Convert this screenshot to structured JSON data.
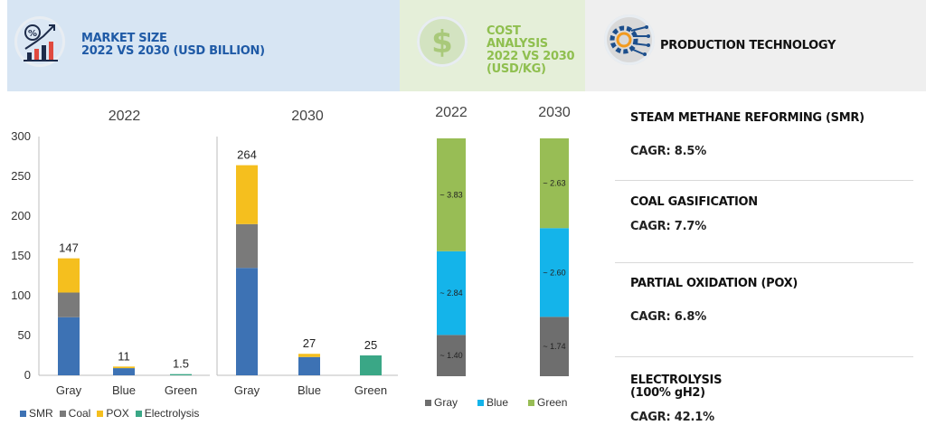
{
  "header": {
    "market_title": "MARKET SIZE\n2022 VS 2030 (USD BILLION)",
    "cost_title": "COST ANALYSIS\n2022 VS 2030\n(USD/KG)",
    "prod_title": "PRODUCTION TECHNOLOGY",
    "market_icon": "chart-percent-icon",
    "cost_icon": "dollar-icon",
    "prod_icon": "gear-circuit-icon"
  },
  "colors": {
    "smr": "#3d72b4",
    "coal": "#7a7a7a",
    "pox": "#f5bf1e",
    "electrolysis": "#3aa786",
    "gray": "#6e6e6e",
    "blue": "#14b4ea",
    "green": "#98bd55"
  },
  "chart_data": [
    {
      "type": "bar",
      "stacked": true,
      "title": "Market Size 2022 vs 2030 (USD Billion)",
      "panels": [
        "2022",
        "2030"
      ],
      "categories": [
        "Gray",
        "Blue",
        "Green"
      ],
      "ylim": [
        0,
        300
      ],
      "yticks": [
        "0",
        "50",
        "100",
        "150",
        "200",
        "250",
        "300"
      ],
      "series": [
        {
          "name": "SMR",
          "values_2022": [
            73,
            9,
            0
          ],
          "values_2030": [
            135,
            23,
            0
          ]
        },
        {
          "name": "Coal",
          "values_2022": [
            31,
            0,
            0
          ],
          "values_2030": [
            55,
            0,
            0
          ]
        },
        {
          "name": "POX",
          "values_2022": [
            43,
            2,
            0
          ],
          "values_2030": [
            74,
            4,
            0
          ]
        },
        {
          "name": "Electrolysis",
          "values_2022": [
            0,
            0,
            1.5
          ],
          "values_2030": [
            0,
            0,
            25
          ]
        }
      ],
      "totals_2022": [
        "147",
        "11",
        "1.5"
      ],
      "totals_2030": [
        "264",
        "27",
        "25"
      ],
      "legend": [
        "SMR",
        "Coal",
        "POX",
        "Electrolysis"
      ]
    },
    {
      "type": "bar",
      "stacked": true,
      "title": "Cost Analysis 2022 vs 2030 (USD/KG)",
      "categories": [
        "2022",
        "2030"
      ],
      "series": [
        {
          "name": "Gray",
          "values": [
            1.4,
            1.74
          ],
          "labels": [
            "~ 1.40",
            "~ 1.74"
          ]
        },
        {
          "name": "Blue",
          "values": [
            2.84,
            2.6
          ],
          "labels": [
            "~ 2.84",
            "~ 2.60"
          ]
        },
        {
          "name": "Green",
          "values": [
            3.83,
            2.63
          ],
          "labels": [
            "~ 3.83",
            "~ 2.63"
          ]
        }
      ],
      "legend": [
        "Gray",
        "Blue",
        "Green"
      ]
    }
  ],
  "production": [
    {
      "name": "STEAM METHANE REFORMING (SMR)",
      "cagr": "CAGR: 8.5%"
    },
    {
      "name": "COAL GASIFICATION",
      "cagr": "CAGR: 7.7%"
    },
    {
      "name": "PARTIAL OXIDATION (POX)",
      "cagr": "CAGR: 6.8%"
    },
    {
      "name": "ELECTROLYSIS\n(100% gH2)",
      "cagr": "CAGR: 42.1%"
    }
  ]
}
